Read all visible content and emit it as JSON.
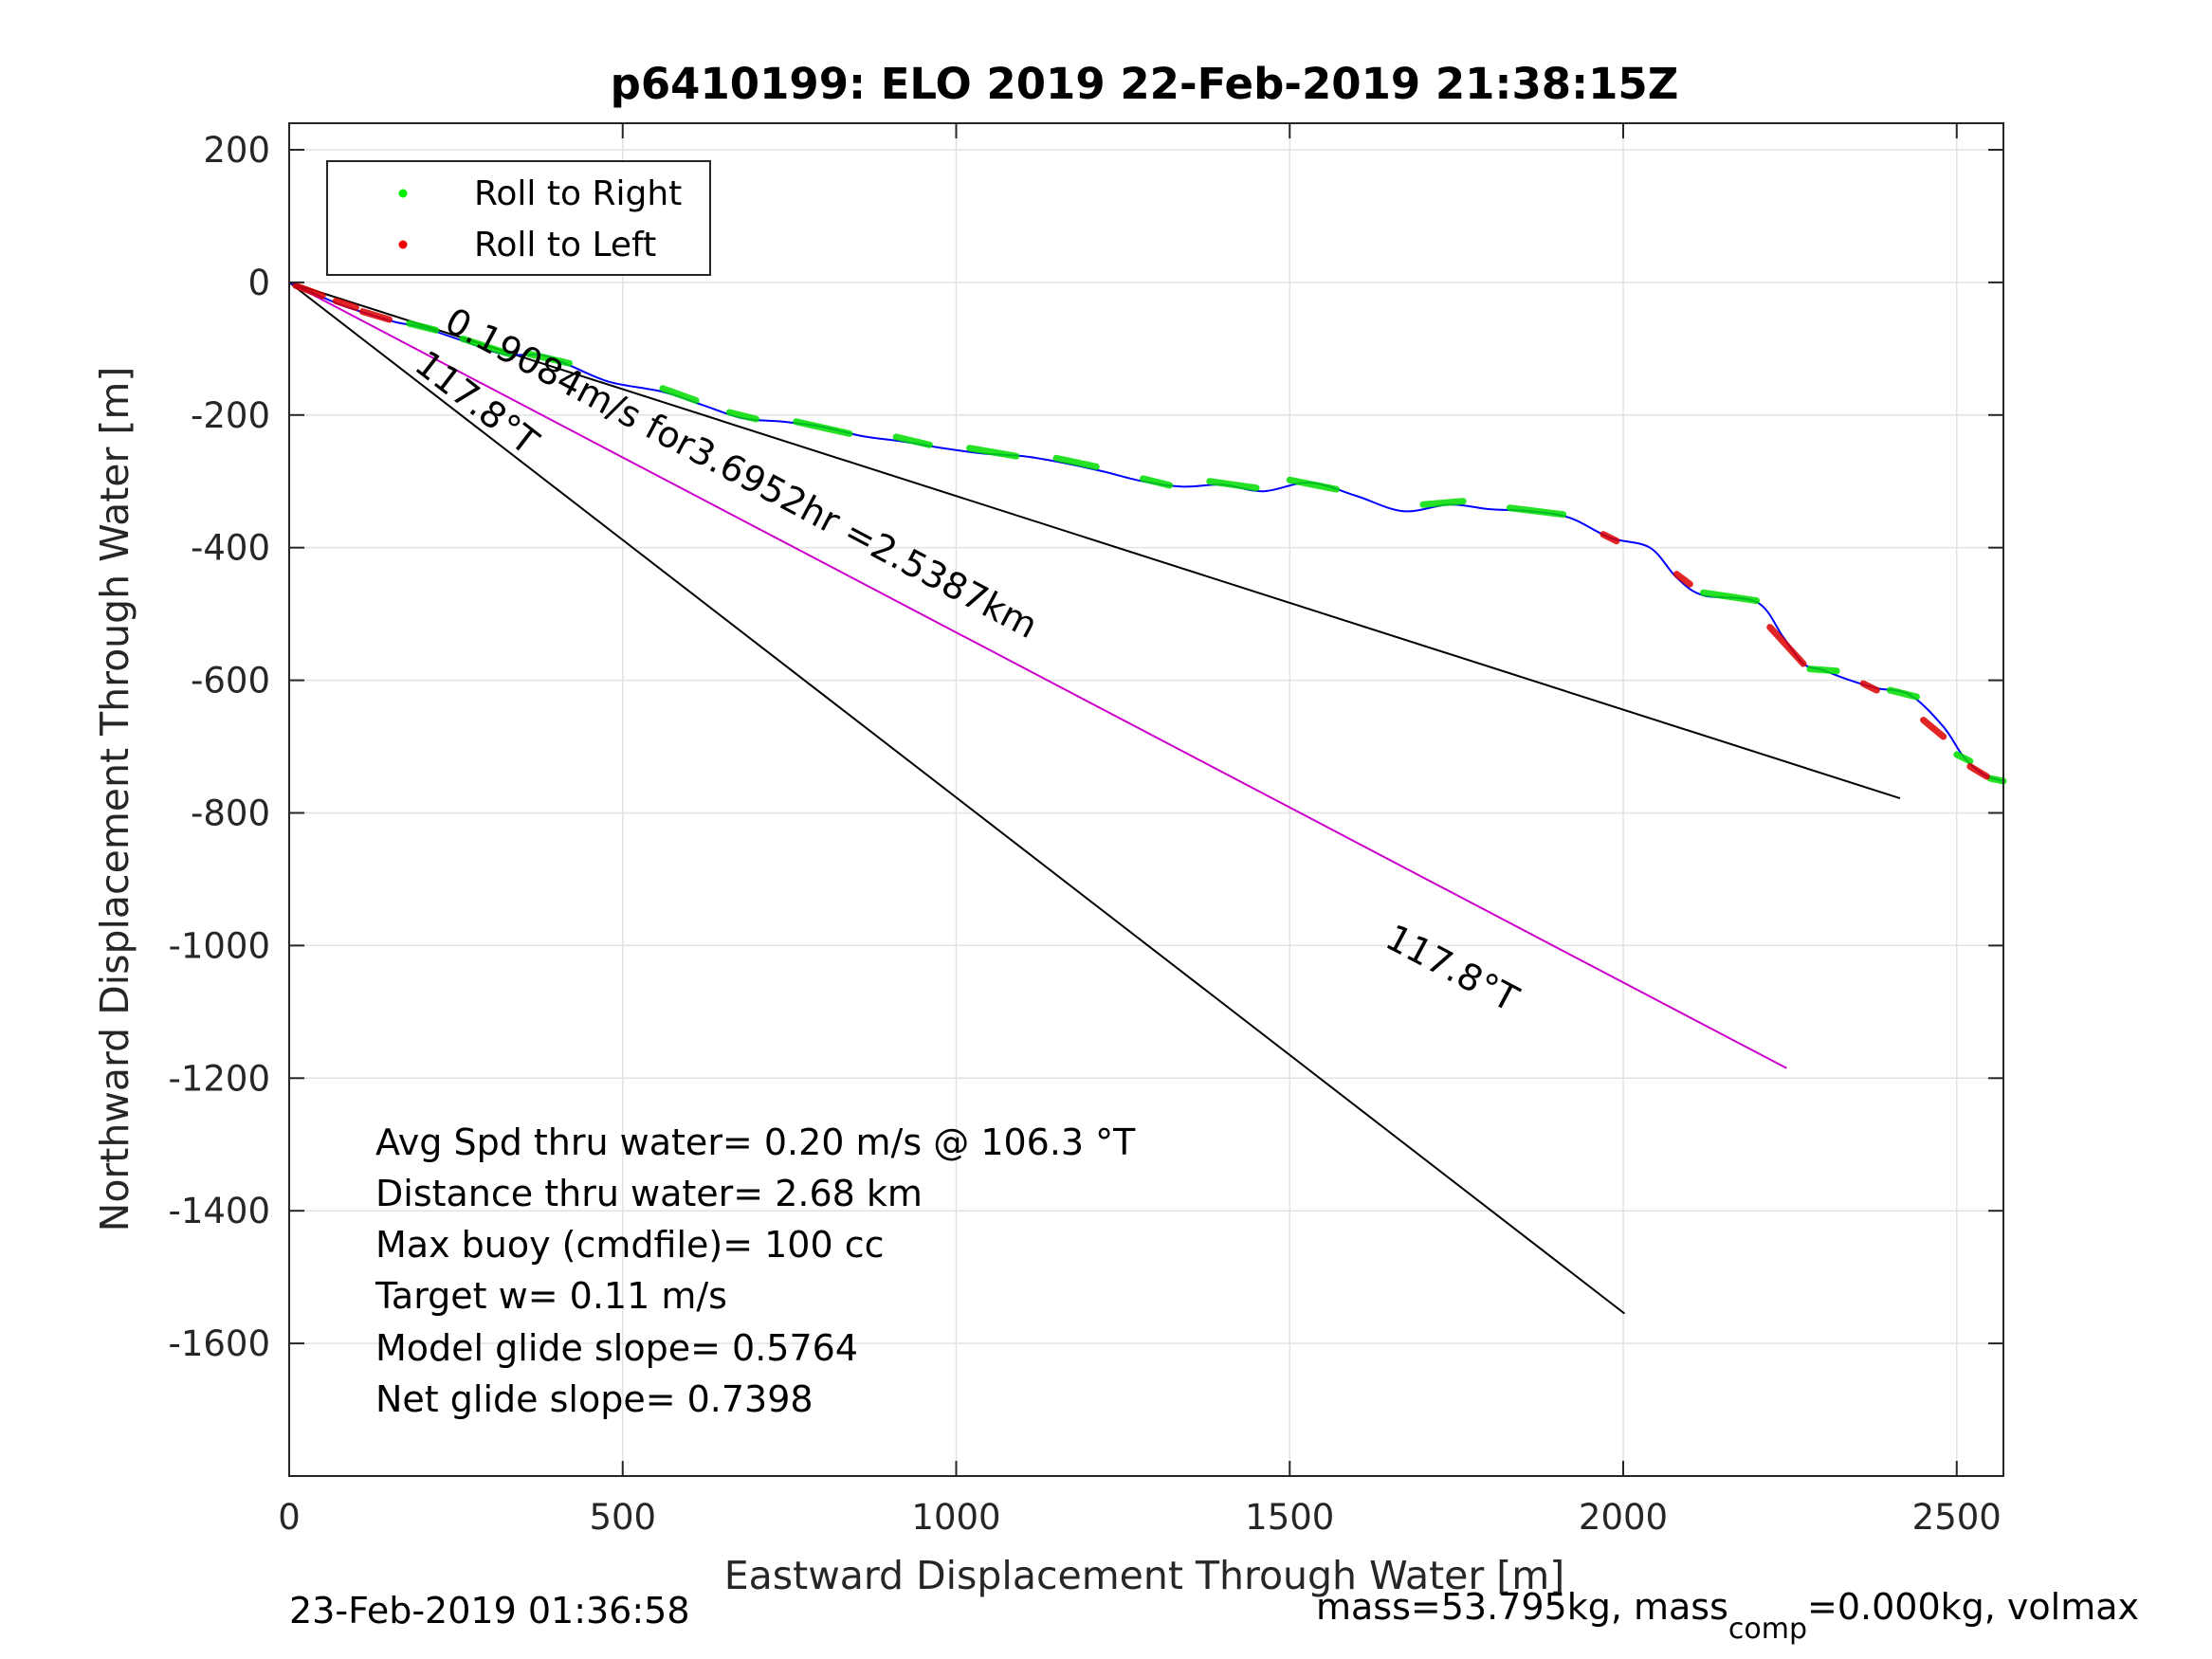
{
  "chart_data": {
    "type": "line",
    "title": "p6410199: ELO 2019 22-Feb-2019 21:38:15Z",
    "xlabel": "Eastward Displacement Through Water [m]",
    "ylabel": "Northward Displacement Through Water [m]",
    "xlim": [
      0,
      2570
    ],
    "ylim": [
      -1800,
      240
    ],
    "xticks": [
      0,
      500,
      1000,
      1500,
      2000,
      2500
    ],
    "yticks": [
      200,
      0,
      -200,
      -400,
      -600,
      -800,
      -1000,
      -1200,
      -1400,
      -1600
    ],
    "grid": true,
    "legend": {
      "placement": "top-left",
      "entries": [
        {
          "label": "Roll to Right",
          "color": "#00ee00"
        },
        {
          "label": "Roll to Left",
          "color": "#ee0000"
        }
      ]
    },
    "track": {
      "name": "track",
      "color": "#0000ff",
      "x": [
        0,
        40,
        80,
        120,
        160,
        200,
        260,
        320,
        380,
        420,
        480,
        560,
        620,
        680,
        740,
        800,
        860,
        920,
        980,
        1040,
        1100,
        1160,
        1220,
        1280,
        1340,
        1400,
        1460,
        1530,
        1600,
        1670,
        1740,
        1800,
        1860,
        1920,
        1980,
        2040,
        2080,
        2120,
        2200,
        2240,
        2270,
        2300,
        2340,
        2380,
        2430,
        2480,
        2510,
        2540,
        2570
      ],
      "y": [
        0,
        -18,
        -35,
        -48,
        -60,
        -68,
        -88,
        -108,
        -110,
        -125,
        -150,
        -165,
        -185,
        -205,
        -210,
        -218,
        -232,
        -240,
        -250,
        -258,
        -262,
        -272,
        -285,
        -300,
        -308,
        -305,
        -315,
        -302,
        -322,
        -345,
        -335,
        -342,
        -345,
        -355,
        -385,
        -400,
        -445,
        -472,
        -482,
        -535,
        -575,
        -585,
        -600,
        -612,
        -622,
        -670,
        -715,
        -742,
        -752
      ]
    },
    "roll_right_segments": [
      {
        "x": [
          180,
          220
        ],
        "y": [
          -62,
          -72
        ]
      },
      {
        "x": [
          260,
          330
        ],
        "y": [
          -85,
          -108
        ]
      },
      {
        "x": [
          360,
          420
        ],
        "y": [
          -108,
          -122
        ]
      },
      {
        "x": [
          560,
          610
        ],
        "y": [
          -160,
          -178
        ]
      },
      {
        "x": [
          660,
          700
        ],
        "y": [
          -196,
          -206
        ]
      },
      {
        "x": [
          760,
          840
        ],
        "y": [
          -210,
          -228
        ]
      },
      {
        "x": [
          910,
          960
        ],
        "y": [
          -233,
          -245
        ]
      },
      {
        "x": [
          1020,
          1090
        ],
        "y": [
          -250,
          -262
        ]
      },
      {
        "x": [
          1150,
          1210
        ],
        "y": [
          -265,
          -278
        ]
      },
      {
        "x": [
          1280,
          1320
        ],
        "y": [
          -296,
          -306
        ]
      },
      {
        "x": [
          1380,
          1450
        ],
        "y": [
          -300,
          -310
        ]
      },
      {
        "x": [
          1500,
          1570
        ],
        "y": [
          -298,
          -312
        ]
      },
      {
        "x": [
          1700,
          1760
        ],
        "y": [
          -335,
          -330
        ]
      },
      {
        "x": [
          1830,
          1910
        ],
        "y": [
          -340,
          -350
        ]
      },
      {
        "x": [
          2120,
          2200
        ],
        "y": [
          -468,
          -480
        ]
      },
      {
        "x": [
          2280,
          2320
        ],
        "y": [
          -583,
          -586
        ]
      },
      {
        "x": [
          2400,
          2440
        ],
        "y": [
          -615,
          -625
        ]
      },
      {
        "x": [
          2500,
          2520
        ],
        "y": [
          -712,
          -722
        ]
      },
      {
        "x": [
          2550,
          2570
        ],
        "y": [
          -748,
          -752
        ]
      }
    ],
    "roll_left_segments": [
      {
        "x": [
          10,
          50
        ],
        "y": [
          -5,
          -20
        ]
      },
      {
        "x": [
          70,
          100
        ],
        "y": [
          -28,
          -38
        ]
      },
      {
        "x": [
          110,
          150
        ],
        "y": [
          -44,
          -56
        ]
      },
      {
        "x": [
          1970,
          1990
        ],
        "y": [
          -380,
          -390
        ]
      },
      {
        "x": [
          2080,
          2100
        ],
        "y": [
          -440,
          -455
        ]
      },
      {
        "x": [
          2220,
          2270
        ],
        "y": [
          -520,
          -575
        ]
      },
      {
        "x": [
          2360,
          2380
        ],
        "y": [
          -605,
          -615
        ]
      },
      {
        "x": [
          2450,
          2480
        ],
        "y": [
          -660,
          -685
        ]
      },
      {
        "x": [
          2520,
          2545
        ],
        "y": [
          -730,
          -745
        ]
      }
    ],
    "reference_lines": [
      {
        "name": "net",
        "color": "#000000",
        "x": [
          0,
          2415
        ],
        "y": [
          0,
          -778
        ]
      },
      {
        "name": "heading",
        "color": "#cc00cc",
        "x": [
          0,
          2245
        ],
        "y": [
          0,
          -1185
        ]
      },
      {
        "name": "heading-black",
        "color": "#000000",
        "x": [
          0,
          2002
        ],
        "y": [
          0,
          -1555
        ]
      }
    ],
    "line_labels": [
      {
        "text": "0.19084m/s for3.6952hr =2.5387km",
        "x": 230,
        "y": -70,
        "angle": 27.9
      },
      {
        "text": "117.8°T",
        "x": 185,
        "y": -130,
        "angle": 37.7
      },
      {
        "text": "117.8°T",
        "x": 1640,
        "y": -1000,
        "angle": 27.9
      }
    ],
    "annotations": [
      "Avg Spd thru water=  0.20 m/s @ 106.3 °T",
      "Distance thru water=  2.68 km",
      "Max buoy (cmdfile)= 100 cc",
      "Target w= 0.11 m/s",
      "Model glide slope= 0.5764",
      "Net glide slope= 0.7398"
    ]
  },
  "footer": {
    "timestamp": "23-Feb-2019 01:36:58",
    "mass_prefix": "mass=53.795kg, mass",
    "mass_sub": "comp",
    "mass_suffix": "=0.000kg, volmax"
  }
}
